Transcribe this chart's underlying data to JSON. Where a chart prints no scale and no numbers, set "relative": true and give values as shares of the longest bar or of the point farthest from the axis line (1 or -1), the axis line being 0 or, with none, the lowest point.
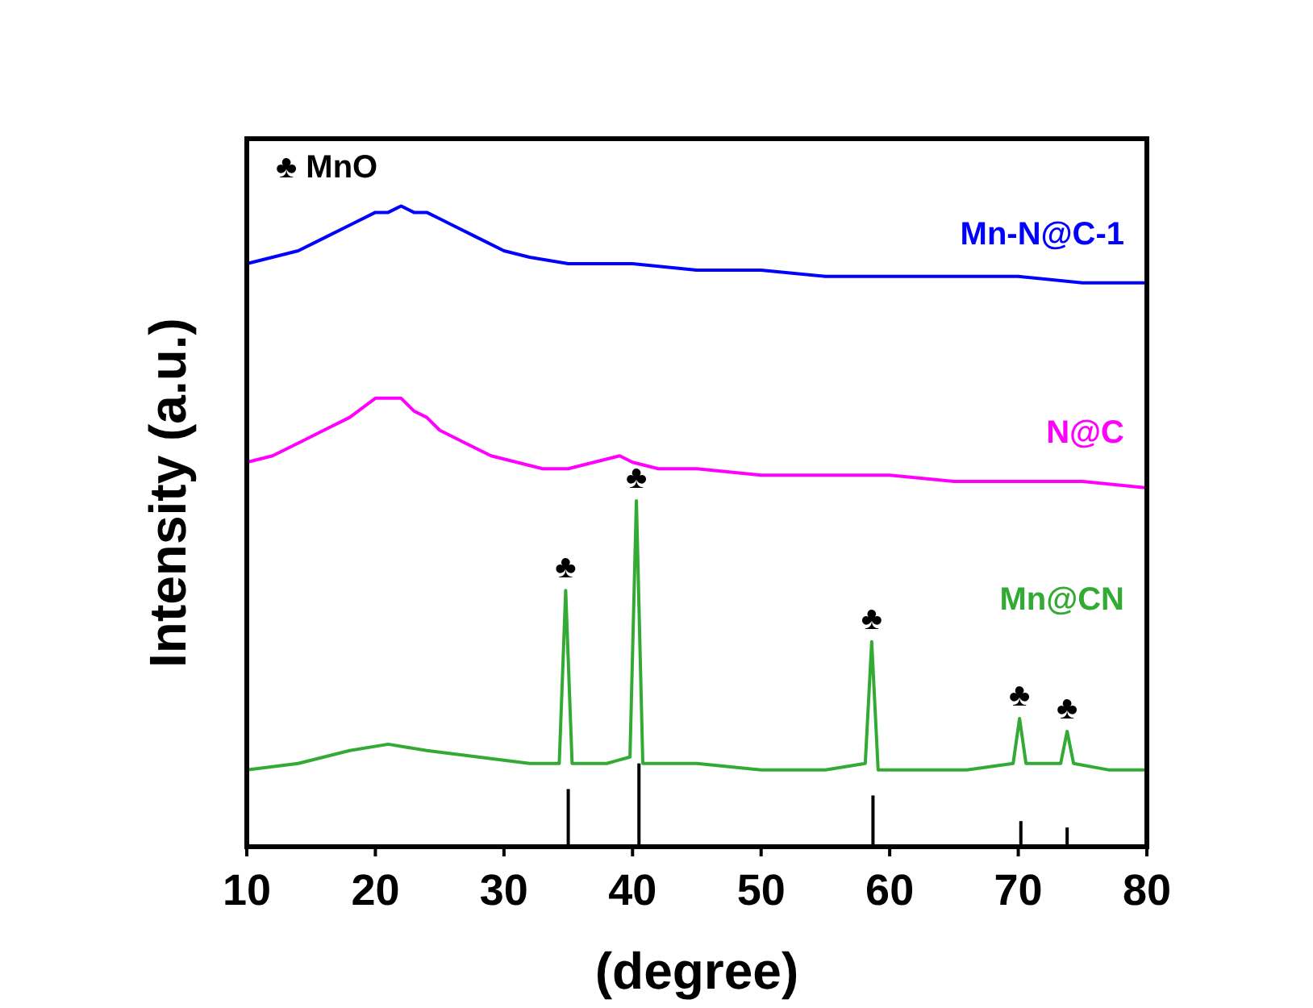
{
  "chart_data": {
    "type": "line",
    "relative": true,
    "xlabel": "(degree)",
    "ylabel": "Intensity (a.u.)",
    "xlim": [
      10,
      80
    ],
    "xticks": [
      10,
      20,
      30,
      40,
      50,
      60,
      70,
      80
    ],
    "grid": false,
    "legend": false,
    "marker": "none",
    "annotations": [
      "♣ MnO",
      {
        "text": "♣",
        "x": 34.8,
        "y": 0.4
      },
      {
        "text": "♣",
        "x": 40.3,
        "y": 0.54
      },
      {
        "text": "♣",
        "x": 58.6,
        "y": 0.32
      },
      {
        "text": "♣",
        "x": 70.1,
        "y": 0.2
      },
      {
        "text": "♣",
        "x": 73.8,
        "y": 0.18
      }
    ],
    "series": [
      {
        "name": "Mn-N@C-1",
        "color": "#0000ff",
        "x": [
          10,
          12,
          14,
          16,
          18,
          20,
          21,
          22,
          23,
          24,
          25,
          26,
          28,
          30,
          32,
          35,
          38,
          40,
          45,
          50,
          55,
          60,
          65,
          70,
          75,
          80
        ],
        "values": [
          0.91,
          0.92,
          0.93,
          0.95,
          0.97,
          0.99,
          0.99,
          1,
          0.99,
          0.99,
          0.98,
          0.97,
          0.95,
          0.93,
          0.92,
          0.91,
          0.91,
          0.91,
          0.9,
          0.9,
          0.89,
          0.89,
          0.89,
          0.89,
          0.88,
          0.88
        ]
      },
      {
        "name": "N@C",
        "color": "#ff00ff",
        "x": [
          10,
          12,
          14,
          16,
          18,
          20,
          21,
          22,
          23,
          24,
          25,
          27,
          29,
          31,
          33,
          35,
          37,
          39,
          40,
          42,
          45,
          50,
          55,
          60,
          65,
          70,
          75,
          80
        ],
        "values": [
          0.6,
          0.61,
          0.63,
          0.65,
          0.67,
          0.7,
          0.7,
          0.7,
          0.68,
          0.67,
          0.65,
          0.63,
          0.61,
          0.6,
          0.59,
          0.59,
          0.6,
          0.61,
          0.6,
          0.59,
          0.59,
          0.58,
          0.58,
          0.58,
          0.57,
          0.57,
          0.57,
          0.56
        ]
      },
      {
        "name": "Mn@CN",
        "color": "#33aa33",
        "x": [
          10,
          14,
          18,
          21,
          24,
          28,
          32,
          34.3,
          34.8,
          35.3,
          36,
          38,
          39.8,
          40.3,
          40.8,
          42,
          45,
          50,
          55,
          58.1,
          58.6,
          59.1,
          62,
          66,
          69.6,
          70.1,
          70.6,
          72,
          73.3,
          73.8,
          74.3,
          77,
          80
        ],
        "values": [
          0.12,
          0.13,
          0.15,
          0.16,
          0.15,
          0.14,
          0.13,
          0.13,
          0.4,
          0.13,
          0.13,
          0.13,
          0.14,
          0.54,
          0.13,
          0.13,
          0.13,
          0.12,
          0.12,
          0.13,
          0.32,
          0.12,
          0.12,
          0.12,
          0.13,
          0.2,
          0.13,
          0.13,
          0.13,
          0.18,
          0.13,
          0.12,
          0.12
        ]
      },
      {
        "type": "bar",
        "color": "#000000",
        "x": [
          35,
          40.5,
          58.7,
          70.2,
          73.8
        ],
        "values": [
          0.09,
          0.13,
          0.08,
          0.04,
          0.03
        ]
      }
    ]
  }
}
